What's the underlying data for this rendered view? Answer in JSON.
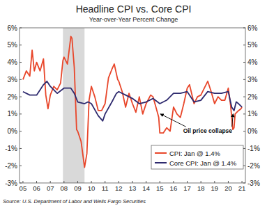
{
  "chart_data": {
    "type": "line",
    "title": "Headline CPI vs. Core CPI",
    "subtitle": "Year-over-Year Percent Change",
    "source": "Source: U.S. Department of Labor and Wells Fargo Securities",
    "xlim": [
      2004.75,
      2021.25
    ],
    "xticks": [
      {
        "value": 2005,
        "label": "05"
      },
      {
        "value": 2006,
        "label": "06"
      },
      {
        "value": 2007,
        "label": "07"
      },
      {
        "value": 2008,
        "label": "08"
      },
      {
        "value": 2009,
        "label": "09"
      },
      {
        "value": 2010,
        "label": "10"
      },
      {
        "value": 2011,
        "label": "11"
      },
      {
        "value": 2012,
        "label": "12"
      },
      {
        "value": 2013,
        "label": "13"
      },
      {
        "value": 2014,
        "label": "14"
      },
      {
        "value": 2015,
        "label": "15"
      },
      {
        "value": 2016,
        "label": "16"
      },
      {
        "value": 2017,
        "label": "17"
      },
      {
        "value": 2018,
        "label": "18"
      },
      {
        "value": 2019,
        "label": "19"
      },
      {
        "value": 2020,
        "label": "20"
      },
      {
        "value": 2021,
        "label": "21"
      }
    ],
    "ylim": [
      -3,
      6
    ],
    "yticks": [
      {
        "value": -3,
        "label": "-3%"
      },
      {
        "value": -2,
        "label": "-2%"
      },
      {
        "value": -1,
        "label": "-1%"
      },
      {
        "value": 0,
        "label": "0%"
      },
      {
        "value": 1,
        "label": "1%"
      },
      {
        "value": 2,
        "label": "2%"
      },
      {
        "value": 3,
        "label": "3%"
      },
      {
        "value": 4,
        "label": "4%"
      },
      {
        "value": 5,
        "label": "5%"
      },
      {
        "value": 6,
        "label": "6%"
      }
    ],
    "y2lim": [
      -3,
      6
    ],
    "y2ticks": [
      {
        "value": -3,
        "label": "-3%"
      },
      {
        "value": -2,
        "label": "-2%"
      },
      {
        "value": -1,
        "label": "-1%"
      },
      {
        "value": 0,
        "label": "0%"
      },
      {
        "value": 1,
        "label": "1%"
      },
      {
        "value": 2,
        "label": "2%"
      },
      {
        "value": 3,
        "label": "3%"
      },
      {
        "value": 4,
        "label": "4%"
      },
      {
        "value": 5,
        "label": "5%"
      },
      {
        "value": 6,
        "label": "6%"
      }
    ],
    "grid": false,
    "legend": "lower right",
    "recessions": [
      [
        2007.92,
        2009.5
      ]
    ],
    "annotations": [
      {
        "text": "Oil price collapse",
        "x": 2016.7,
        "y": -0.1,
        "arrows": [
          [
            2015.05,
            1.0
          ],
          [
            2020.35,
            1.0
          ]
        ]
      }
    ],
    "series": [
      {
        "name": "CPI: Jan @ 1.4%",
        "color": "#e8462a",
        "x": [
          2005.0,
          2005.25,
          2005.5,
          2005.67,
          2005.83,
          2006.0,
          2006.25,
          2006.5,
          2006.67,
          2006.83,
          2007.0,
          2007.25,
          2007.5,
          2007.75,
          2007.92,
          2008.0,
          2008.25,
          2008.5,
          2008.58,
          2008.75,
          2008.92,
          2009.0,
          2009.25,
          2009.5,
          2009.67,
          2009.83,
          2010.0,
          2010.25,
          2010.5,
          2010.75,
          2011.0,
          2011.25,
          2011.5,
          2011.67,
          2011.92,
          2012.0,
          2012.25,
          2012.5,
          2012.75,
          2013.0,
          2013.25,
          2013.5,
          2013.75,
          2014.0,
          2014.33,
          2014.5,
          2014.75,
          2014.92,
          2015.0,
          2015.25,
          2015.5,
          2015.75,
          2016.0,
          2016.25,
          2016.5,
          2016.75,
          2017.0,
          2017.17,
          2017.5,
          2017.75,
          2018.0,
          2018.25,
          2018.5,
          2018.75,
          2019.0,
          2019.25,
          2019.5,
          2019.75,
          2020.0,
          2020.17,
          2020.33,
          2020.42,
          2020.5,
          2020.75,
          2020.92,
          2021.0
        ],
        "values": [
          3.0,
          3.5,
          3.2,
          4.7,
          3.5,
          4.0,
          3.5,
          4.2,
          2.1,
          1.3,
          2.1,
          2.6,
          2.4,
          2.8,
          4.1,
          4.3,
          3.9,
          5.5,
          5.4,
          3.7,
          0.1,
          0.0,
          -0.6,
          -2.1,
          -1.3,
          1.8,
          2.6,
          2.0,
          1.2,
          1.2,
          1.6,
          3.1,
          3.6,
          3.9,
          3.0,
          2.9,
          2.3,
          1.4,
          2.2,
          1.6,
          1.1,
          2.0,
          1.0,
          1.6,
          2.1,
          2.0,
          1.3,
          0.8,
          -0.1,
          -0.1,
          0.2,
          0.0,
          1.4,
          1.0,
          0.8,
          1.6,
          2.5,
          2.7,
          1.6,
          2.0,
          2.1,
          2.5,
          2.9,
          2.3,
          1.6,
          2.0,
          1.8,
          1.8,
          2.5,
          1.5,
          0.1,
          0.2,
          1.0,
          1.2,
          1.3,
          1.4
        ]
      },
      {
        "name": "Core CPI: Jan @ 1.4%",
        "color": "#2e2a6e",
        "x": [
          2005.0,
          2005.5,
          2006.0,
          2006.5,
          2006.75,
          2007.0,
          2007.5,
          2008.0,
          2008.5,
          2008.75,
          2009.0,
          2009.5,
          2009.75,
          2010.0,
          2010.5,
          2010.83,
          2011.0,
          2011.5,
          2011.83,
          2012.0,
          2012.5,
          2013.0,
          2013.5,
          2014.0,
          2014.5,
          2015.0,
          2015.5,
          2016.0,
          2016.5,
          2017.0,
          2017.5,
          2018.0,
          2018.5,
          2019.0,
          2019.5,
          2020.0,
          2020.25,
          2020.42,
          2020.58,
          2020.75,
          2021.0
        ],
        "values": [
          2.3,
          2.1,
          2.1,
          2.7,
          2.9,
          2.6,
          2.2,
          2.5,
          2.5,
          2.2,
          1.7,
          1.6,
          1.7,
          1.6,
          0.9,
          0.6,
          1.0,
          1.7,
          2.2,
          2.3,
          2.1,
          1.9,
          1.6,
          1.7,
          1.9,
          1.6,
          1.8,
          2.2,
          2.2,
          2.3,
          1.7,
          1.8,
          2.3,
          2.2,
          2.2,
          2.3,
          1.4,
          1.2,
          1.7,
          1.6,
          1.4
        ]
      }
    ]
  }
}
